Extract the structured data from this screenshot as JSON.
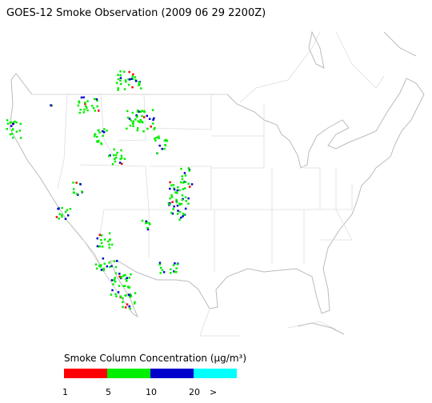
{
  "header": {
    "title": "GOES-12 Smoke Observation (2009 06 29  2200Z)"
  },
  "legend": {
    "title": "Smoke Column Concentration (μg/m³)",
    "colors": [
      "#ff0000",
      "#00ee00",
      "#0000cc",
      "#00ffff"
    ],
    "tick_labels": [
      "1",
      "5",
      "10",
      "20",
      ">"
    ]
  }
}
